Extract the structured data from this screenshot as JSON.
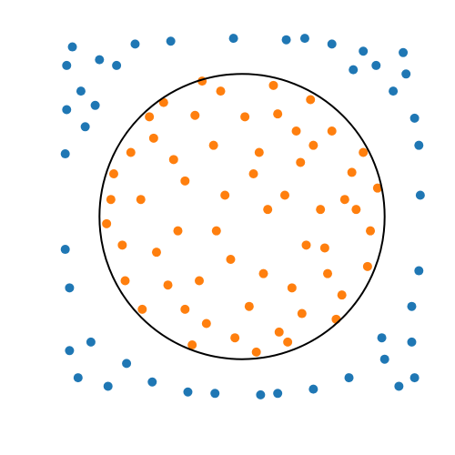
{
  "chart_data": {
    "type": "scatter",
    "xlim": [
      -1.27,
      1.27
    ],
    "ylim": [
      -1.27,
      1.27
    ],
    "grid": false,
    "circle": {
      "radius": 1,
      "color": "#000000"
    },
    "series": [
      {
        "color": "#1f77b4",
        "x": [
          -1.19,
          -1.0,
          1.13,
          0.94,
          -1.15,
          1.1,
          1.19,
          -1.23,
          1.21,
          -0.75,
          0.63,
          -0.38,
          0.25,
          -1.21,
          1.24,
          -1.06,
          1.0,
          -0.88,
          0.85,
          -1.24,
          1.25,
          -0.63,
          0.75,
          -1.13,
          1.06,
          -0.06,
          0.44,
          -0.94,
          1.19,
          -1.24,
          1.15,
          -1.1,
          0.5,
          -0.81,
          1.24,
          -0.5,
          0.13,
          -1.21,
          0.98,
          -1.03,
          0.78,
          -1.23,
          1.21,
          -0.19,
          0.31
        ],
        "values": [
          1.19,
          1.1,
          1.15,
          1.06,
          -1.13,
          -1.19,
          -0.88,
          0.75,
          0.69,
          1.21,
          1.21,
          -1.23,
          -1.24,
          -0.5,
          -0.38,
          -0.88,
          -1.0,
          1.06,
          1.16,
          0.44,
          0.15,
          -1.16,
          -1.13,
          0.88,
          0.88,
          1.25,
          1.25,
          -1.19,
          -0.63,
          -0.23,
          1.0,
          0.63,
          -1.21,
          -1.03,
          0.5,
          1.23,
          -1.25,
          -0.94,
          -0.85,
          0.78,
          1.03,
          1.06,
          -1.13,
          -1.24,
          1.24
        ]
      },
      {
        "color": "#ff7f0e",
        "x": [
          0.12,
          -0.33,
          0.58,
          -0.71,
          0.05,
          0.41,
          -0.52,
          0.77,
          -0.15,
          0.26,
          -0.84,
          0.63,
          -0.4,
          0.18,
          -0.08,
          0.9,
          -0.62,
          0.35,
          -0.25,
          0.7,
          -0.9,
          0.48,
          -0.45,
          0.02,
          -0.7,
          0.85,
          0.3,
          -0.2,
          0.55,
          -0.55,
          0.1,
          -0.95,
          0.66,
          -0.3,
          0.22,
          -0.78,
          0.45,
          -0.12,
          0.8,
          -0.35,
          0.38,
          -0.6,
          0.15,
          0.95,
          -0.48,
          0.6,
          -0.05,
          0.25,
          -0.82,
          0.72,
          -0.18,
          0.5,
          -0.65,
          0.08,
          -0.4,
          0.88,
          -0.28,
          0.32,
          -0.92,
          0.42
        ],
        "values": [
          0.45,
          0.71,
          -0.22,
          0.12,
          -0.63,
          0.38,
          -0.48,
          0.31,
          0.88,
          -0.81,
          -0.2,
          0.6,
          0.25,
          0.05,
          -0.3,
          -0.1,
          0.55,
          -0.5,
          -0.75,
          -0.55,
          0.3,
          0.82,
          -0.1,
          0.7,
          -0.65,
          0.45,
          0.15,
          0.5,
          0.05,
          0.8,
          -0.95,
          -0.05,
          -0.72,
          -0.45,
          0.92,
          0.45,
          -0.2,
          0.15,
          0.05,
          -0.9,
          0.6,
          -0.25,
          -0.4,
          0.2,
          0.4,
          -0.4,
          -0.85,
          0.72,
          -0.45,
          0.12,
          -0.1,
          0.5,
          0.7,
          0.3,
          -0.65,
          -0.35,
          0.95,
          -0.88,
          0.12,
          -0.68
        ]
      }
    ]
  }
}
